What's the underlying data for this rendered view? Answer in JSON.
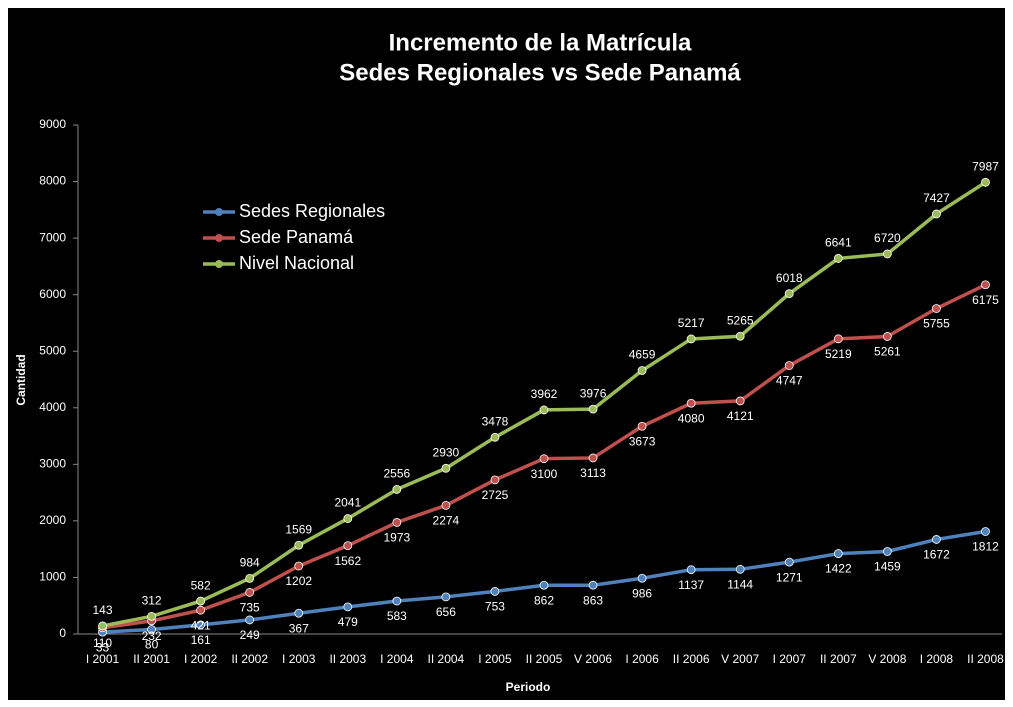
{
  "chart_data": {
    "type": "line",
    "title": "Incremento de la Matrícula",
    "subtitle": "Sedes Regionales vs Sede Panamá",
    "x_label": "Periodo",
    "y_label": "Cantidad",
    "categories": [
      "I 2001",
      "II 2001",
      "I 2002",
      "II 2002",
      "I 2003",
      "II 2003",
      "I 2004",
      "II 2004",
      "I 2005",
      "II 2005",
      "V 2006",
      "I 2006",
      "II 2006",
      "V 2007",
      "I 2007",
      "II 2007",
      "V 2008",
      "I 2008",
      "II 2008"
    ],
    "series": [
      {
        "name": "Sedes Regionales",
        "color": "#4f81bd",
        "values": [
          33,
          80,
          161,
          249,
          367,
          479,
          583,
          656,
          753,
          862,
          863,
          986,
          1137,
          1144,
          1271,
          1422,
          1459,
          1672,
          1812
        ]
      },
      {
        "name": "Sede Panamá",
        "color": "#c0504d",
        "values": [
          110,
          232,
          421,
          735,
          1202,
          1562,
          1973,
          2274,
          2725,
          3100,
          3113,
          3673,
          4080,
          4121,
          4747,
          5219,
          5261,
          5755,
          6175
        ]
      },
      {
        "name": "Nivel Nacional",
        "color": "#9bbb59",
        "values": [
          143,
          312,
          582,
          984,
          1569,
          2041,
          2556,
          2930,
          3478,
          3962,
          3976,
          4659,
          5217,
          5265,
          6018,
          6641,
          6720,
          7427,
          7987
        ]
      }
    ],
    "ylim": [
      0,
      9000
    ],
    "yticks": [
      0,
      1000,
      2000,
      3000,
      4000,
      5000,
      6000,
      7000,
      8000,
      9000
    ],
    "legend": "upper left"
  }
}
